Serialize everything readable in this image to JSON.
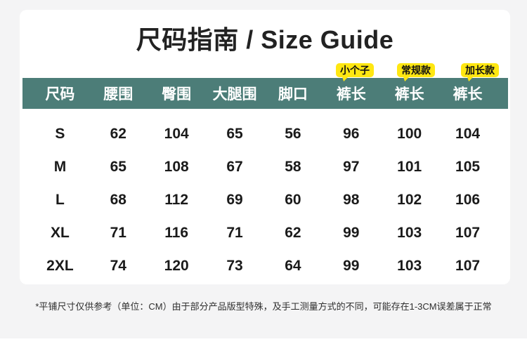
{
  "title": "尺码指南 / Size Guide",
  "badges": [
    {
      "label": "小个子"
    },
    {
      "label": "常规款"
    },
    {
      "label": "加长款"
    }
  ],
  "table": {
    "headers": [
      "尺码",
      "腰围",
      "臀围",
      "大腿围",
      "脚口",
      "裤长",
      "裤长",
      "裤长"
    ],
    "rows": [
      [
        "S",
        "62",
        "104",
        "65",
        "56",
        "96",
        "100",
        "104"
      ],
      [
        "M",
        "65",
        "108",
        "67",
        "58",
        "97",
        "101",
        "105"
      ],
      [
        "L",
        "68",
        "112",
        "69",
        "60",
        "98",
        "102",
        "106"
      ],
      [
        "XL",
        "71",
        "116",
        "71",
        "62",
        "99",
        "103",
        "107"
      ],
      [
        "2XL",
        "74",
        "120",
        "73",
        "64",
        "99",
        "103",
        "107"
      ]
    ]
  },
  "footnote": "*平铺尺寸仅供参考（单位：CM）由于部分产品版型特殊，及手工测量方式的不同，可能存在1-3CM误差属于正常",
  "colors": {
    "page_bg": "#f4f4f5",
    "card_bg": "#ffffff",
    "header_bg": "#4c7d78",
    "header_text": "#ffffff",
    "badge_bg": "#ffe712",
    "badge_text": "#111111",
    "title_text": "#222222",
    "cell_text": "#1a1a1a",
    "footnote_text": "#2f2f2f"
  }
}
